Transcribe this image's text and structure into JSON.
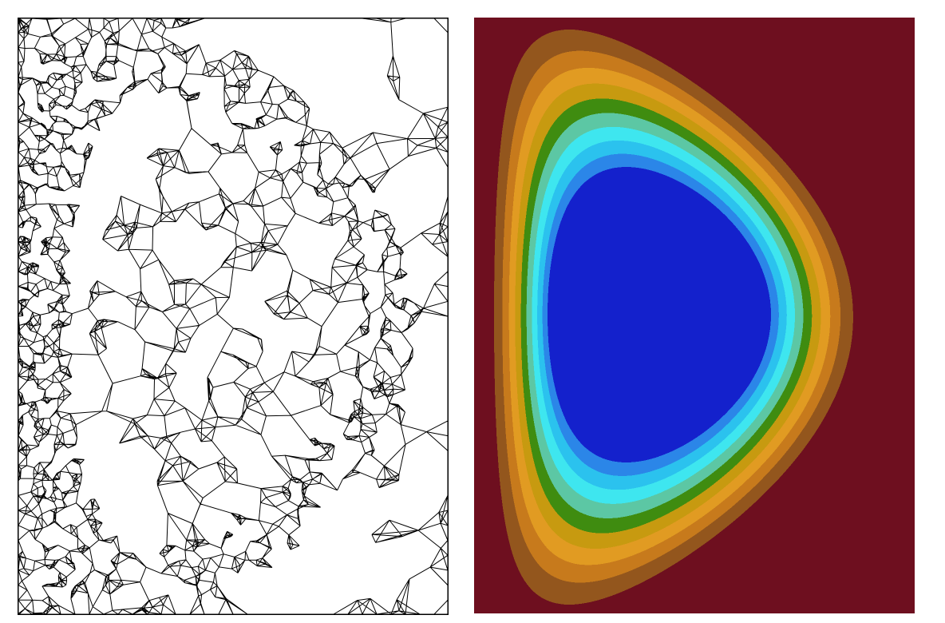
{
  "figure": {
    "panels": [
      {
        "id": "mesh",
        "kind": "triangular finite-element mesh",
        "stroke_color": "#000000",
        "background_color": "#ffffff"
      },
      {
        "id": "contour",
        "kind": "filled contour plot",
        "background_color": "#6e0f1f",
        "contour_levels_outer_to_inner": [
          "#6e0f1f",
          "#93561d",
          "#c77a1c",
          "#e19b22",
          "#c79a10",
          "#3f8c10",
          "#5cc7a4",
          "#3ee6ef",
          "#2bc2ee",
          "#2b86e8",
          "#1421cc"
        ]
      }
    ]
  }
}
